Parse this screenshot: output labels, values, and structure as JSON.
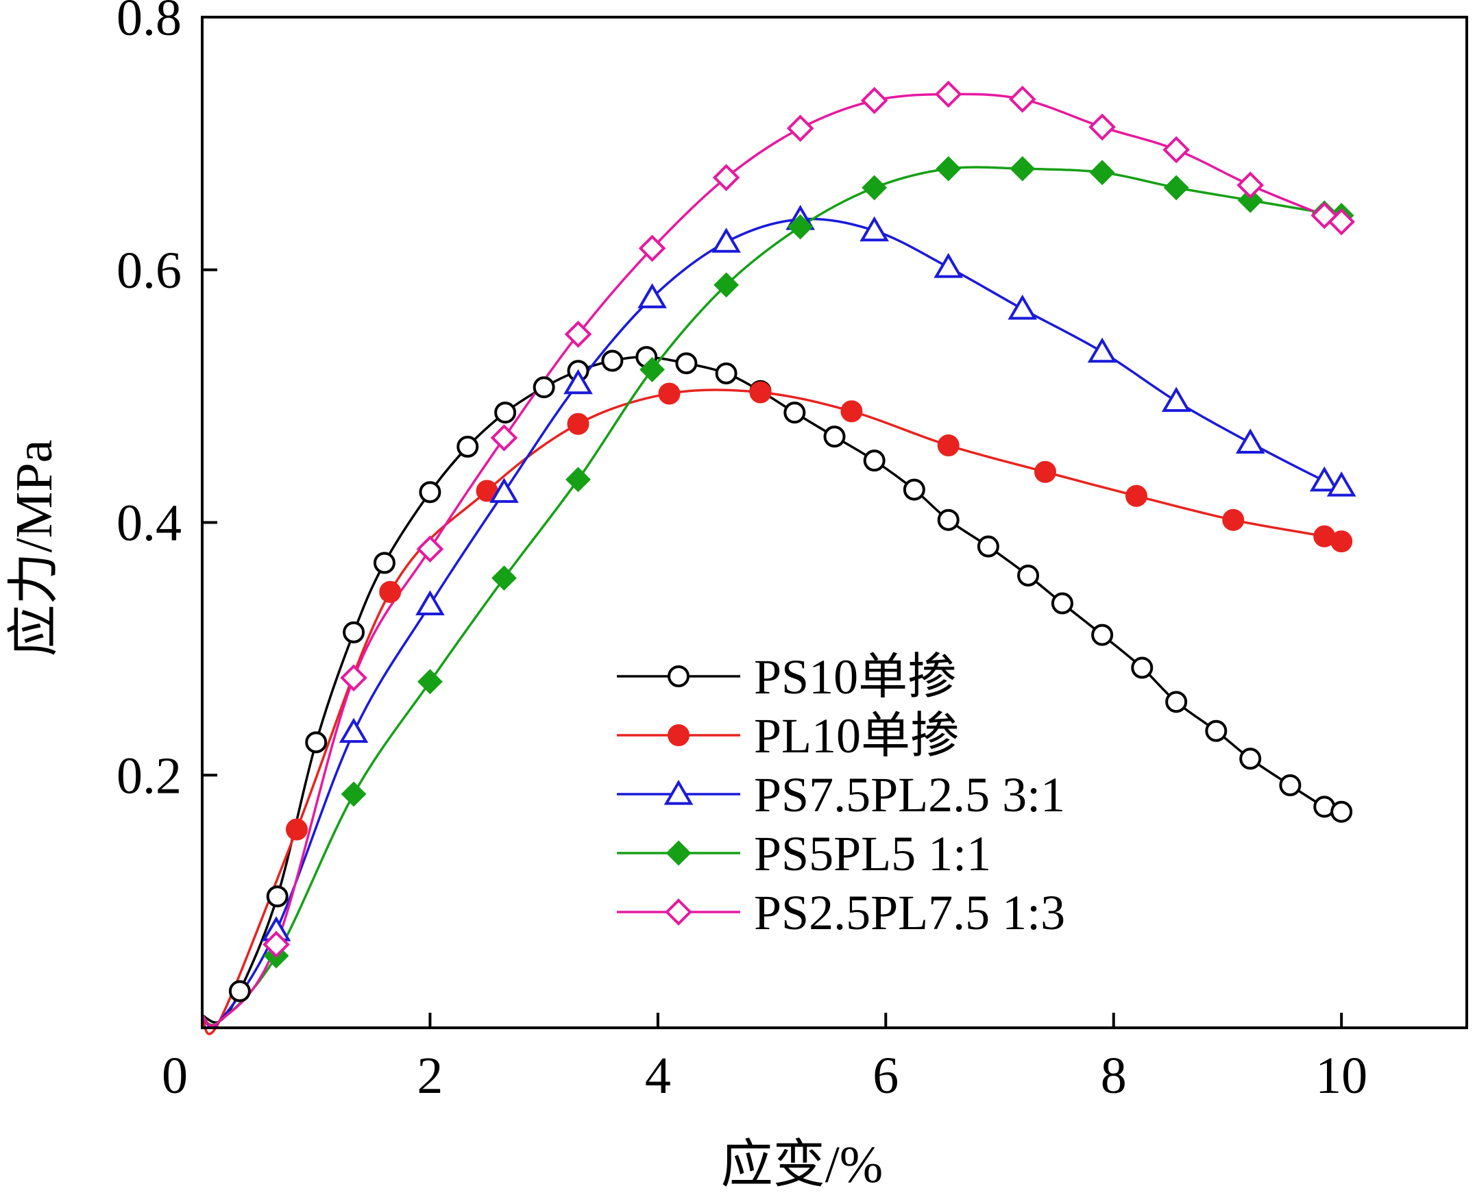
{
  "chart_data": {
    "type": "line",
    "xlabel": "应变/%",
    "ylabel": "应力/MPa",
    "xlim": [
      0,
      11.1
    ],
    "ylim": [
      0,
      0.8
    ],
    "xticks": [
      0,
      2,
      4,
      6,
      8,
      10
    ],
    "yticks": [
      0,
      0.2,
      0.4,
      0.6,
      0.8
    ],
    "grid": false,
    "legend_position": "lower-center",
    "series": [
      {
        "name": "PS10单掺",
        "color": "#000000",
        "marker": "open-circle",
        "x": [
          0.33,
          0.66,
          1.0,
          1.33,
          1.6,
          2.0,
          2.33,
          2.66,
          3.0,
          3.3,
          3.6,
          3.9,
          4.25,
          4.6,
          4.9,
          5.2,
          5.55,
          5.9,
          6.25,
          6.55,
          6.9,
          7.25,
          7.55,
          7.9,
          8.25,
          8.55,
          8.9,
          9.2,
          9.55,
          9.85,
          10.0
        ],
        "y": [
          0.029,
          0.104,
          0.226,
          0.313,
          0.368,
          0.424,
          0.46,
          0.487,
          0.507,
          0.52,
          0.528,
          0.531,
          0.526,
          0.518,
          0.504,
          0.487,
          0.468,
          0.449,
          0.426,
          0.402,
          0.381,
          0.358,
          0.336,
          0.311,
          0.285,
          0.258,
          0.235,
          0.213,
          0.192,
          0.175,
          0.171
        ]
      },
      {
        "name": "PL10单掺",
        "color": "#e8231f",
        "marker": "filled-circle",
        "x": [
          0.83,
          1.65,
          2.5,
          3.3,
          4.1,
          4.9,
          5.7,
          6.55,
          7.4,
          8.2,
          9.05,
          9.85,
          10.0
        ],
        "y": [
          0.157,
          0.345,
          0.425,
          0.478,
          0.502,
          0.503,
          0.488,
          0.461,
          0.44,
          0.421,
          0.402,
          0.389,
          0.385
        ]
      },
      {
        "name": "PS7.5PL2.5 3:1",
        "color": "#1a1adb",
        "marker": "open-triangle",
        "x": [
          0.65,
          1.33,
          2.0,
          2.65,
          3.3,
          3.95,
          4.6,
          5.25,
          5.9,
          6.55,
          7.2,
          7.9,
          8.55,
          9.2,
          9.85,
          10.0
        ],
        "y": [
          0.077,
          0.234,
          0.335,
          0.424,
          0.51,
          0.578,
          0.622,
          0.64,
          0.631,
          0.602,
          0.569,
          0.535,
          0.496,
          0.463,
          0.433,
          0.429
        ]
      },
      {
        "name": "PS5PL5 1:1",
        "color": "#16a016",
        "marker": "filled-diamond",
        "x": [
          0.65,
          1.33,
          2.0,
          2.65,
          3.3,
          3.95,
          4.6,
          5.25,
          5.9,
          6.55,
          7.2,
          7.9,
          8.55,
          9.2,
          9.85,
          10.0
        ],
        "y": [
          0.057,
          0.185,
          0.274,
          0.356,
          0.434,
          0.521,
          0.588,
          0.634,
          0.665,
          0.68,
          0.68,
          0.677,
          0.665,
          0.655,
          0.645,
          0.643
        ]
      },
      {
        "name": "PS2.5PL7.5 1:3",
        "color": "#e6199f",
        "marker": "open-diamond",
        "x": [
          0.65,
          1.33,
          2.0,
          2.65,
          3.3,
          3.95,
          4.6,
          5.25,
          5.9,
          6.55,
          7.2,
          7.9,
          8.55,
          9.2,
          9.85,
          10.0
        ],
        "y": [
          0.066,
          0.277,
          0.379,
          0.467,
          0.549,
          0.617,
          0.673,
          0.712,
          0.734,
          0.739,
          0.735,
          0.713,
          0.695,
          0.667,
          0.643,
          0.638
        ]
      }
    ]
  }
}
